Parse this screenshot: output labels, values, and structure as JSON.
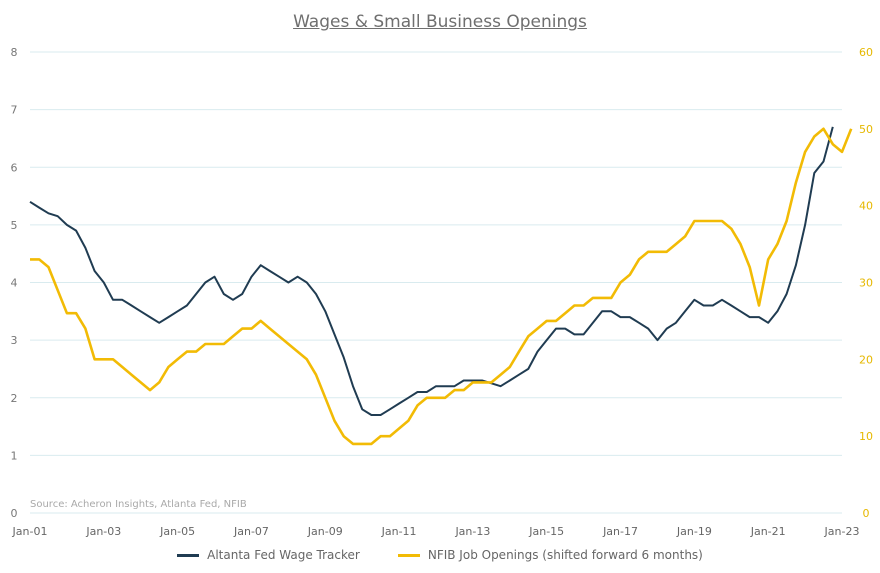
{
  "chart_data": {
    "type": "line",
    "title": "Wages & Small Business Openings",
    "source": "Source: Acheron Insights, Atlanta Fed, NFIB",
    "x_ticks": [
      "Jan-01",
      "Jan-03",
      "Jan-05",
      "Jan-07",
      "Jan-09",
      "Jan-11",
      "Jan-13",
      "Jan-15",
      "Jan-17",
      "Jan-19",
      "Jan-21",
      "Jan-23"
    ],
    "x_range": [
      2001,
      2023
    ],
    "left_axis": {
      "range": [
        0,
        8
      ],
      "ticks": [
        "0",
        "1",
        "2",
        "3",
        "4",
        "5",
        "6",
        "7",
        "8"
      ]
    },
    "right_axis": {
      "range": [
        0,
        60
      ],
      "ticks": [
        "0",
        "10",
        "20",
        "30",
        "40",
        "50",
        "60"
      ]
    },
    "colors": {
      "wage": "#203c52",
      "openings": "#f2bb05",
      "left_tick": "#777777",
      "right_tick": "#e6b800",
      "grid": "#d9ebef"
    },
    "series": [
      {
        "name": "Altanta Fed Wage Tracker",
        "axis": "left",
        "points": [
          [
            2001.0,
            5.4
          ],
          [
            2001.25,
            5.3
          ],
          [
            2001.5,
            5.2
          ],
          [
            2001.75,
            5.15
          ],
          [
            2002.0,
            5.0
          ],
          [
            2002.25,
            4.9
          ],
          [
            2002.5,
            4.6
          ],
          [
            2002.75,
            4.2
          ],
          [
            2003.0,
            4.0
          ],
          [
            2003.25,
            3.7
          ],
          [
            2003.5,
            3.7
          ],
          [
            2003.75,
            3.6
          ],
          [
            2004.0,
            3.5
          ],
          [
            2004.25,
            3.4
          ],
          [
            2004.5,
            3.3
          ],
          [
            2004.75,
            3.4
          ],
          [
            2005.0,
            3.5
          ],
          [
            2005.25,
            3.6
          ],
          [
            2005.5,
            3.8
          ],
          [
            2005.75,
            4.0
          ],
          [
            2006.0,
            4.1
          ],
          [
            2006.25,
            3.8
          ],
          [
            2006.5,
            3.7
          ],
          [
            2006.75,
            3.8
          ],
          [
            2007.0,
            4.1
          ],
          [
            2007.25,
            4.3
          ],
          [
            2007.5,
            4.2
          ],
          [
            2007.75,
            4.1
          ],
          [
            2008.0,
            4.0
          ],
          [
            2008.25,
            4.1
          ],
          [
            2008.5,
            4.0
          ],
          [
            2008.75,
            3.8
          ],
          [
            2009.0,
            3.5
          ],
          [
            2009.25,
            3.1
          ],
          [
            2009.5,
            2.7
          ],
          [
            2009.75,
            2.2
          ],
          [
            2010.0,
            1.8
          ],
          [
            2010.25,
            1.7
          ],
          [
            2010.5,
            1.7
          ],
          [
            2010.75,
            1.8
          ],
          [
            2011.0,
            1.9
          ],
          [
            2011.25,
            2.0
          ],
          [
            2011.5,
            2.1
          ],
          [
            2011.75,
            2.1
          ],
          [
            2012.0,
            2.2
          ],
          [
            2012.25,
            2.2
          ],
          [
            2012.5,
            2.2
          ],
          [
            2012.75,
            2.3
          ],
          [
            2013.0,
            2.3
          ],
          [
            2013.25,
            2.3
          ],
          [
            2013.5,
            2.25
          ],
          [
            2013.75,
            2.2
          ],
          [
            2014.0,
            2.3
          ],
          [
            2014.25,
            2.4
          ],
          [
            2014.5,
            2.5
          ],
          [
            2014.75,
            2.8
          ],
          [
            2015.0,
            3.0
          ],
          [
            2015.25,
            3.2
          ],
          [
            2015.5,
            3.2
          ],
          [
            2015.75,
            3.1
          ],
          [
            2016.0,
            3.1
          ],
          [
            2016.25,
            3.3
          ],
          [
            2016.5,
            3.5
          ],
          [
            2016.75,
            3.5
          ],
          [
            2017.0,
            3.4
          ],
          [
            2017.25,
            3.4
          ],
          [
            2017.5,
            3.3
          ],
          [
            2017.75,
            3.2
          ],
          [
            2018.0,
            3.0
          ],
          [
            2018.25,
            3.2
          ],
          [
            2018.5,
            3.3
          ],
          [
            2018.75,
            3.5
          ],
          [
            2019.0,
            3.7
          ],
          [
            2019.25,
            3.6
          ],
          [
            2019.5,
            3.6
          ],
          [
            2019.75,
            3.7
          ],
          [
            2020.0,
            3.6
          ],
          [
            2020.25,
            3.5
          ],
          [
            2020.5,
            3.4
          ],
          [
            2020.75,
            3.4
          ],
          [
            2021.0,
            3.3
          ],
          [
            2021.25,
            3.5
          ],
          [
            2021.5,
            3.8
          ],
          [
            2021.75,
            4.3
          ],
          [
            2022.0,
            5.0
          ],
          [
            2022.25,
            5.9
          ],
          [
            2022.5,
            6.1
          ],
          [
            2022.75,
            6.7
          ]
        ]
      },
      {
        "name": "NFIB Job Openings (shifted forward 6 months)",
        "axis": "right",
        "points": [
          [
            2001.0,
            33
          ],
          [
            2001.25,
            33
          ],
          [
            2001.5,
            32
          ],
          [
            2001.75,
            29
          ],
          [
            2002.0,
            26
          ],
          [
            2002.25,
            26
          ],
          [
            2002.5,
            24
          ],
          [
            2002.75,
            20
          ],
          [
            2003.0,
            20
          ],
          [
            2003.25,
            20
          ],
          [
            2003.5,
            19
          ],
          [
            2003.75,
            18
          ],
          [
            2004.0,
            17
          ],
          [
            2004.25,
            16
          ],
          [
            2004.5,
            17
          ],
          [
            2004.75,
            19
          ],
          [
            2005.0,
            20
          ],
          [
            2005.25,
            21
          ],
          [
            2005.5,
            21
          ],
          [
            2005.75,
            22
          ],
          [
            2006.0,
            22
          ],
          [
            2006.25,
            22
          ],
          [
            2006.5,
            23
          ],
          [
            2006.75,
            24
          ],
          [
            2007.0,
            24
          ],
          [
            2007.25,
            25
          ],
          [
            2007.5,
            24
          ],
          [
            2007.75,
            23
          ],
          [
            2008.0,
            22
          ],
          [
            2008.25,
            21
          ],
          [
            2008.5,
            20
          ],
          [
            2008.75,
            18
          ],
          [
            2009.0,
            15
          ],
          [
            2009.25,
            12
          ],
          [
            2009.5,
            10
          ],
          [
            2009.75,
            9
          ],
          [
            2010.0,
            9
          ],
          [
            2010.25,
            9
          ],
          [
            2010.5,
            10
          ],
          [
            2010.75,
            10
          ],
          [
            2011.0,
            11
          ],
          [
            2011.25,
            12
          ],
          [
            2011.5,
            14
          ],
          [
            2011.75,
            15
          ],
          [
            2012.0,
            15
          ],
          [
            2012.25,
            15
          ],
          [
            2012.5,
            16
          ],
          [
            2012.75,
            16
          ],
          [
            2013.0,
            17
          ],
          [
            2013.25,
            17
          ],
          [
            2013.5,
            17
          ],
          [
            2013.75,
            18
          ],
          [
            2014.0,
            19
          ],
          [
            2014.25,
            21
          ],
          [
            2014.5,
            23
          ],
          [
            2014.75,
            24
          ],
          [
            2015.0,
            25
          ],
          [
            2015.25,
            25
          ],
          [
            2015.5,
            26
          ],
          [
            2015.75,
            27
          ],
          [
            2016.0,
            27
          ],
          [
            2016.25,
            28
          ],
          [
            2016.5,
            28
          ],
          [
            2016.75,
            28
          ],
          [
            2017.0,
            30
          ],
          [
            2017.25,
            31
          ],
          [
            2017.5,
            33
          ],
          [
            2017.75,
            34
          ],
          [
            2018.0,
            34
          ],
          [
            2018.25,
            34
          ],
          [
            2018.5,
            35
          ],
          [
            2018.75,
            36
          ],
          [
            2019.0,
            38
          ],
          [
            2019.25,
            38
          ],
          [
            2019.5,
            38
          ],
          [
            2019.75,
            38
          ],
          [
            2020.0,
            37
          ],
          [
            2020.25,
            35
          ],
          [
            2020.5,
            32
          ],
          [
            2020.75,
            27
          ],
          [
            2021.0,
            33
          ],
          [
            2021.25,
            35
          ],
          [
            2021.5,
            38
          ],
          [
            2021.75,
            43
          ],
          [
            2022.0,
            47
          ],
          [
            2022.25,
            49
          ],
          [
            2022.5,
            50
          ],
          [
            2022.75,
            48
          ],
          [
            2023.0,
            47
          ],
          [
            2023.25,
            50
          ]
        ]
      }
    ]
  }
}
